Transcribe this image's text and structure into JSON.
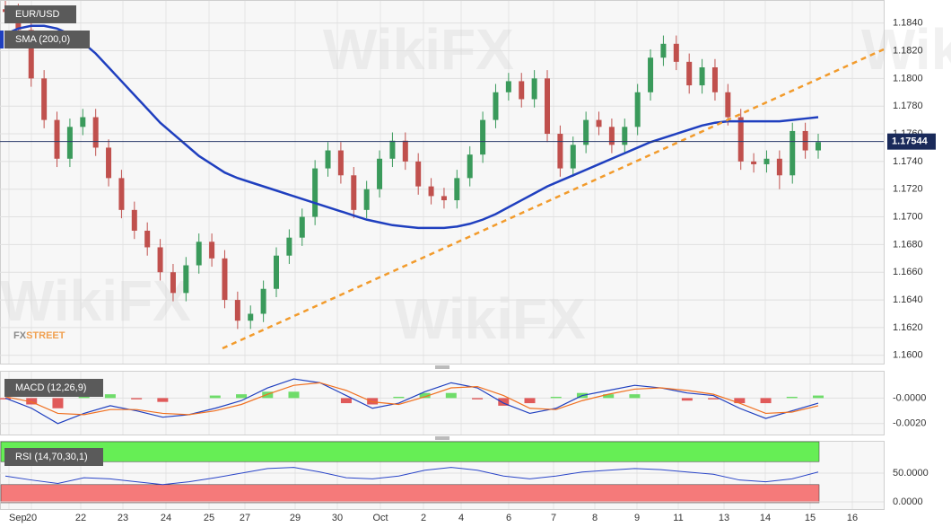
{
  "chart_data": [
    {
      "type": "candlestick",
      "title": "EUR/USD",
      "watermark": "WikiFX",
      "logo": [
        "FX",
        "STREET"
      ],
      "up_color": "#3a9a5b",
      "down_color": "#c0504d",
      "open": [
        1.185,
        1.1848,
        1.1835,
        1.18,
        1.177,
        1.1742,
        1.1765,
        1.1772,
        1.175,
        1.1728,
        1.1705,
        1.169,
        1.1678,
        1.166,
        1.1645,
        1.1665,
        1.1682,
        1.167,
        1.164,
        1.1625,
        1.163,
        1.1648,
        1.1672,
        1.1685,
        1.17,
        1.1735,
        1.1748,
        1.173,
        1.1705,
        1.172,
        1.1742,
        1.1755,
        1.174,
        1.1722,
        1.1715,
        1.1712,
        1.1728,
        1.1745,
        1.177,
        1.179,
        1.1798,
        1.1785,
        1.18,
        1.176,
        1.1735,
        1.1752,
        1.177,
        1.1765,
        1.1752,
        1.1765,
        1.179,
        1.1815,
        1.1825,
        1.1812,
        1.1795,
        1.1808,
        1.179,
        1.1772,
        1.174,
        1.1738,
        1.1742,
        1.173,
        1.1762,
        1.1748
      ],
      "high": [
        1.1856,
        1.1854,
        1.1841,
        1.1806,
        1.1776,
        1.1771,
        1.1778,
        1.1778,
        1.1756,
        1.1734,
        1.1711,
        1.1696,
        1.1684,
        1.1666,
        1.1671,
        1.1688,
        1.1688,
        1.1676,
        1.1646,
        1.1636,
        1.1654,
        1.1678,
        1.1691,
        1.1706,
        1.1741,
        1.1754,
        1.1754,
        1.1736,
        1.1726,
        1.1748,
        1.1761,
        1.1761,
        1.1746,
        1.1728,
        1.1721,
        1.1734,
        1.1751,
        1.1776,
        1.1796,
        1.1804,
        1.1804,
        1.1806,
        1.1806,
        1.1766,
        1.1758,
        1.1776,
        1.1776,
        1.1771,
        1.1771,
        1.1796,
        1.1821,
        1.1831,
        1.1831,
        1.1818,
        1.1814,
        1.1814,
        1.1796,
        1.1778,
        1.1746,
        1.1748,
        1.1748,
        1.1768,
        1.1768,
        1.176
      ],
      "low": [
        1.1842,
        1.1829,
        1.1794,
        1.1764,
        1.1736,
        1.1736,
        1.1759,
        1.1744,
        1.1722,
        1.1699,
        1.1684,
        1.1672,
        1.1654,
        1.1639,
        1.1639,
        1.1659,
        1.1664,
        1.1634,
        1.1619,
        1.1619,
        1.1624,
        1.1642,
        1.1666,
        1.1679,
        1.1694,
        1.1729,
        1.1724,
        1.1699,
        1.1699,
        1.1714,
        1.1736,
        1.1734,
        1.1716,
        1.1709,
        1.1706,
        1.1706,
        1.1722,
        1.1739,
        1.1764,
        1.1784,
        1.1779,
        1.1779,
        1.1754,
        1.1729,
        1.1729,
        1.1746,
        1.1759,
        1.1746,
        1.1746,
        1.1759,
        1.1784,
        1.1809,
        1.1806,
        1.1789,
        1.1789,
        1.1784,
        1.1766,
        1.1734,
        1.1732,
        1.1732,
        1.172,
        1.1724,
        1.1742,
        1.1742
      ],
      "close": [
        1.1848,
        1.1835,
        1.18,
        1.177,
        1.1742,
        1.1765,
        1.1772,
        1.175,
        1.1728,
        1.1705,
        1.169,
        1.1678,
        1.166,
        1.1645,
        1.1665,
        1.1682,
        1.167,
        1.164,
        1.1625,
        1.163,
        1.1648,
        1.1672,
        1.1685,
        1.17,
        1.1735,
        1.1748,
        1.173,
        1.1705,
        1.172,
        1.1742,
        1.1755,
        1.174,
        1.1722,
        1.1715,
        1.1712,
        1.1728,
        1.1745,
        1.177,
        1.179,
        1.1798,
        1.1785,
        1.18,
        1.176,
        1.1735,
        1.1752,
        1.177,
        1.1765,
        1.1752,
        1.1765,
        1.179,
        1.1815,
        1.1825,
        1.1812,
        1.1795,
        1.1808,
        1.179,
        1.1772,
        1.174,
        1.1738,
        1.1742,
        1.173,
        1.1762,
        1.1748,
        1.1754
      ],
      "series": [
        {
          "name": "SMA (200,0)",
          "color": "#1f3fbf",
          "values": [
            1.1832,
            1.1836,
            1.1838,
            1.1838,
            1.1836,
            1.1832,
            1.1826,
            1.1818,
            1.1808,
            1.1798,
            1.1788,
            1.1778,
            1.1768,
            1.176,
            1.1752,
            1.1744,
            1.1738,
            1.1732,
            1.1728,
            1.1725,
            1.1722,
            1.1719,
            1.1716,
            1.1713,
            1.171,
            1.1707,
            1.1704,
            1.1701,
            1.1698,
            1.1696,
            1.1694,
            1.1693,
            1.1692,
            1.1692,
            1.1692,
            1.1693,
            1.1695,
            1.1698,
            1.1702,
            1.1707,
            1.1712,
            1.1717,
            1.1722,
            1.1726,
            1.173,
            1.1734,
            1.1738,
            1.1742,
            1.1746,
            1.175,
            1.1754,
            1.1757,
            1.176,
            1.1763,
            1.1766,
            1.1768,
            1.1769,
            1.1769,
            1.1769,
            1.1769,
            1.1769,
            1.177,
            1.1771,
            1.1772
          ]
        }
      ],
      "trendline": {
        "values": [
          1.1605,
          1.1821
        ],
        "color": "#f29b2c"
      },
      "last_price": 1.17544,
      "ylim": [
        1.1594,
        1.1856
      ],
      "yticks": [
        {
          "value": 1.16,
          "label": "1.1600"
        },
        {
          "value": 1.162,
          "label": "1.1620"
        },
        {
          "value": 1.164,
          "label": "1.1640"
        },
        {
          "value": 1.166,
          "label": "1.1660"
        },
        {
          "value": 1.168,
          "label": "1.1680"
        },
        {
          "value": 1.17,
          "label": "1.1700"
        },
        {
          "value": 1.172,
          "label": "1.1720"
        },
        {
          "value": 1.174,
          "label": "1.1740"
        },
        {
          "value": 1.176,
          "label": "1.1760"
        },
        {
          "value": 1.178,
          "label": "1.1780"
        },
        {
          "value": 1.18,
          "label": "1.1800"
        },
        {
          "value": 1.182,
          "label": "1.1820"
        },
        {
          "value": 1.184,
          "label": "1.1840"
        }
      ],
      "grid": true
    },
    {
      "type": "macd",
      "title": "MACD (12,26,9)",
      "macd": {
        "color": "#1f3fbf",
        "values": [
          0,
          -0.0008,
          -0.002,
          -0.0012,
          -0.0006,
          -0.001,
          -0.0015,
          -0.0013,
          -0.0008,
          -0.0002,
          0.0008,
          0.0015,
          0.0012,
          0.0002,
          -0.0008,
          -0.0004,
          0.0005,
          0.0012,
          0.0008,
          -0.0004,
          -0.0012,
          -0.0008,
          0.0002,
          0.0006,
          0.001,
          0.0008,
          0.0004,
          0.0002,
          -0.0008,
          -0.0016,
          -0.001,
          -0.0004
        ]
      },
      "signal": {
        "color": "#f07020",
        "values": [
          0.0001,
          -0.0003,
          -0.0012,
          -0.0013,
          -0.0009,
          -0.0009,
          -0.0012,
          -0.0013,
          -0.001,
          -0.0005,
          0.0003,
          0.001,
          0.0012,
          0.0006,
          -0.0003,
          -0.0005,
          0.0001,
          0.0008,
          0.0009,
          0.0002,
          -0.0008,
          -0.0009,
          -0.0002,
          0.0003,
          0.0007,
          0.0008,
          0.0006,
          0.0003,
          -0.0004,
          -0.0012,
          -0.0011,
          -0.0006
        ]
      },
      "histogram": {
        "up_color": "#6fdc6a",
        "down_color": "#e05a5a",
        "values": [
          -0.0001,
          -0.0005,
          -0.0008,
          0.0001,
          0.0003,
          -0.0001,
          -0.0003,
          0,
          0.0002,
          0.0003,
          0.0005,
          0.0005,
          0,
          -0.0004,
          -0.0005,
          0.0001,
          0.0004,
          0.0004,
          -0.0001,
          -0.0006,
          -0.0004,
          0.0001,
          0.0004,
          0.0003,
          0.0003,
          0,
          -0.0002,
          -0.0001,
          -0.0004,
          -0.0004,
          0.0001,
          0.0002
        ]
      },
      "ylim": [
        -0.00286,
        0.00207
      ],
      "yticks": [
        {
          "value": -0.002,
          "label": "-0.0020"
        },
        {
          "value": 0,
          "label": "-0.0000"
        }
      ]
    },
    {
      "type": "rsi",
      "title": "RSI (14,70,30,1)",
      "color": "#2a45c8",
      "values": [
        45,
        38,
        32,
        42,
        40,
        35,
        30,
        35,
        42,
        50,
        58,
        60,
        52,
        42,
        40,
        45,
        55,
        60,
        55,
        45,
        40,
        45,
        52,
        55,
        58,
        56,
        52,
        48,
        38,
        35,
        40,
        52
      ],
      "overbought": 70,
      "oversold": 30,
      "overbought_color": "#66ee55",
      "oversold_color": "#f57a7a",
      "ylim": [
        -12.5,
        104.7
      ],
      "yticks": [
        {
          "value": 0,
          "label": "0.0000"
        },
        {
          "value": 50,
          "label": "50.0000"
        }
      ],
      "x_labels": [
        "Sep",
        "20",
        "22",
        "23",
        "24",
        "25",
        "27",
        "29",
        "30",
        "Oct",
        "2",
        "4",
        "6",
        "7",
        "8",
        "9",
        "11",
        "13",
        "14",
        "15",
        "16"
      ]
    }
  ]
}
